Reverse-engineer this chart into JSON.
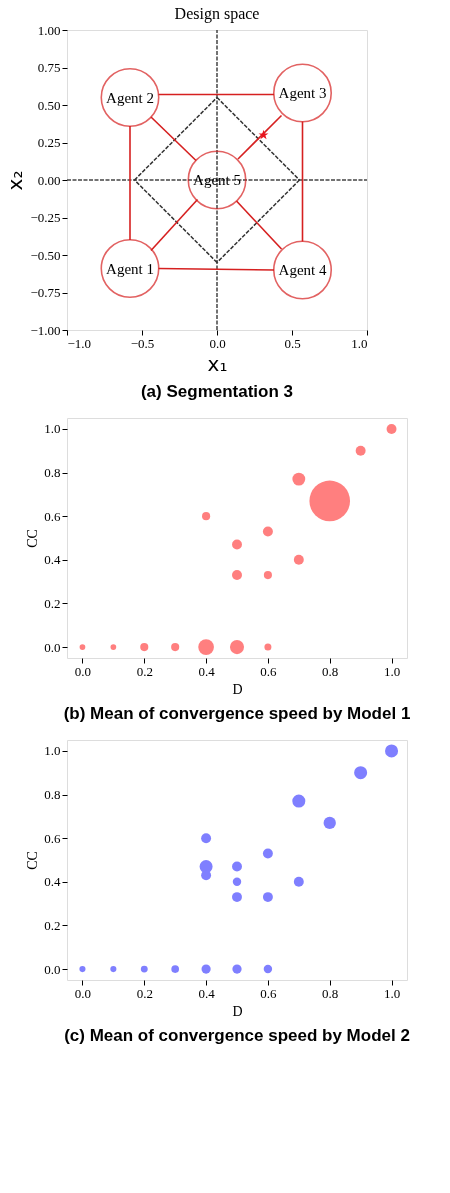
{
  "chart_data": [
    {
      "type": "scatter",
      "title": "Design space",
      "xlabel": "x₁",
      "ylabel": "x₂",
      "xlim": [
        -1,
        1
      ],
      "ylim": [
        -1,
        1
      ],
      "xticks": [
        {
          "value": -1,
          "label": "−1.0"
        },
        {
          "value": -0.5,
          "label": "−0.5"
        },
        {
          "value": 0,
          "label": "0.0"
        },
        {
          "value": 0.5,
          "label": "0.5"
        },
        {
          "value": 1,
          "label": "1.0"
        }
      ],
      "yticks": [
        {
          "value": -1,
          "label": "−1.00"
        },
        {
          "value": -0.75,
          "label": "−0.75"
        },
        {
          "value": -0.5,
          "label": "−0.50"
        },
        {
          "value": -0.25,
          "label": "−0.25"
        },
        {
          "value": 0,
          "label": "0.00"
        },
        {
          "value": 0.25,
          "label": "0.25"
        },
        {
          "value": 0.5,
          "label": "0.50"
        },
        {
          "value": 0.75,
          "label": "0.75"
        },
        {
          "value": 1,
          "label": "1.00"
        }
      ],
      "series": [
        {
          "type": "line",
          "color": "#444444",
          "line_style": "dashed",
          "x": [
            0,
            0
          ],
          "values": [
            -1,
            1
          ]
        },
        {
          "type": "line",
          "color": "#444444",
          "line_style": "dashed",
          "x": [
            -1,
            1
          ],
          "values": [
            0,
            0
          ]
        },
        {
          "type": "line",
          "color": "#333333",
          "line_style": "dashed",
          "x": [
            0,
            0.55
          ],
          "values": [
            0.55,
            0
          ]
        },
        {
          "type": "line",
          "color": "#333333",
          "line_style": "dashed",
          "x": [
            0.55,
            0
          ],
          "values": [
            0,
            -0.55
          ]
        },
        {
          "type": "line",
          "color": "#333333",
          "line_style": "dashed",
          "x": [
            0,
            -0.55
          ],
          "values": [
            -0.55,
            0
          ]
        },
        {
          "type": "line",
          "color": "#333333",
          "line_style": "dashed",
          "x": [
            -0.55,
            0
          ],
          "values": [
            0,
            0.55
          ]
        },
        {
          "type": "line",
          "color": "#d62020",
          "x": [
            -0.39,
            0.38
          ],
          "values": [
            0.57,
            0.57
          ]
        },
        {
          "type": "line",
          "color": "#d62020",
          "x": [
            0.57,
            0.57
          ],
          "values": [
            0.39,
            -0.41
          ]
        },
        {
          "type": "line",
          "color": "#d62020",
          "x": [
            -0.39,
            0.38
          ],
          "values": [
            -0.59,
            -0.6
          ]
        },
        {
          "type": "line",
          "color": "#d62020",
          "x": [
            -0.58,
            -0.58
          ],
          "values": [
            0.36,
            -0.4
          ]
        },
        {
          "type": "line",
          "color": "#d62020",
          "x": [
            -0.44,
            -0.14
          ],
          "values": [
            0.42,
            0.13
          ]
        },
        {
          "type": "line",
          "color": "#d62020",
          "x": [
            0.43,
            0.14
          ],
          "values": [
            0.43,
            0.14
          ]
        },
        {
          "type": "line",
          "color": "#d62020",
          "x": [
            -0.44,
            -0.13
          ],
          "values": [
            -0.47,
            -0.13
          ]
        },
        {
          "type": "line",
          "color": "#d62020",
          "x": [
            0.43,
            0.13
          ],
          "values": [
            -0.46,
            -0.14
          ]
        },
        {
          "type": "scatter",
          "marker": "circle",
          "color": "#d62020",
          "x": [
            -0.58,
            -0.58,
            0.57,
            0.57,
            0
          ],
          "values": [
            -0.59,
            0.55,
            0.58,
            -0.6,
            0
          ]
        },
        {
          "type": "scatter",
          "marker": "star",
          "color": "#e8141e",
          "x": [
            0.31
          ],
          "values": [
            0.3
          ]
        }
      ],
      "annotations": [
        {
          "text": "Agent 1",
          "x": -0.58,
          "y": -0.59
        },
        {
          "text": "Agent 2",
          "x": -0.58,
          "y": 0.55
        },
        {
          "text": "Agent 3",
          "x": 0.57,
          "y": 0.58
        },
        {
          "text": "Agent 4",
          "x": 0.57,
          "y": -0.6
        },
        {
          "text": "Agent 5",
          "x": 0,
          "y": 0
        },
        "(a) Segmentation 3"
      ]
    },
    {
      "type": "bubble",
      "xlabel": "D",
      "ylabel": "CC",
      "xlim": [
        -0.05,
        1.05
      ],
      "ylim": [
        -0.05,
        1.05
      ],
      "xticks": [
        {
          "value": 0,
          "label": "0.0"
        },
        {
          "value": 0.2,
          "label": "0.2"
        },
        {
          "value": 0.4,
          "label": "0.4"
        },
        {
          "value": 0.6,
          "label": "0.6"
        },
        {
          "value": 0.8,
          "label": "0.8"
        },
        {
          "value": 1,
          "label": "1.0"
        }
      ],
      "yticks": [
        {
          "value": 0,
          "label": "0.0"
        },
        {
          "value": 0.2,
          "label": "0.2"
        },
        {
          "value": 0.4,
          "label": "0.4"
        },
        {
          "value": 0.6,
          "label": "0.6"
        },
        {
          "value": 0.8,
          "label": "0.8"
        },
        {
          "value": 1,
          "label": "1.0"
        }
      ],
      "series": [
        {
          "color": "#ff7f7f",
          "x": [
            0,
            0.1,
            0.2,
            0.3,
            0.4,
            0.5,
            0.6,
            0.4,
            0.5,
            0.5,
            0.6,
            0.6,
            0.7,
            0.7,
            0.8,
            0.9,
            1.0
          ],
          "values": [
            0,
            0,
            0,
            0,
            0,
            0,
            0,
            0.6,
            0.47,
            0.33,
            0.53,
            0.33,
            0.4,
            0.77,
            0.67,
            0.9,
            1.0
          ],
          "sizes": [
            0.02,
            0.02,
            0.04,
            0.04,
            0.15,
            0.12,
            0.03,
            0.04,
            0.06,
            0.06,
            0.06,
            0.04,
            0.06,
            0.1,
            1,
            0.06,
            0.06
          ]
        }
      ],
      "annotations": [
        "(b) Mean of convergence speed by Model 1"
      ]
    },
    {
      "type": "bubble",
      "xlabel": "D",
      "ylabel": "CC",
      "xlim": [
        -0.05,
        1.05
      ],
      "ylim": [
        -0.05,
        1.05
      ],
      "xticks": [
        {
          "value": 0,
          "label": "0.0"
        },
        {
          "value": 0.2,
          "label": "0.2"
        },
        {
          "value": 0.4,
          "label": "0.4"
        },
        {
          "value": 0.6,
          "label": "0.6"
        },
        {
          "value": 0.8,
          "label": "0.8"
        },
        {
          "value": 1,
          "label": "1.0"
        }
      ],
      "yticks": [
        {
          "value": 0,
          "label": "0.0"
        },
        {
          "value": 0.2,
          "label": "0.2"
        },
        {
          "value": 0.4,
          "label": "0.4"
        },
        {
          "value": 0.6,
          "label": "0.6"
        },
        {
          "value": 0.8,
          "label": "0.8"
        },
        {
          "value": 1,
          "label": "1.0"
        }
      ],
      "series": [
        {
          "color": "#7f7fff",
          "x": [
            0,
            0.1,
            0.2,
            0.3,
            0.4,
            0.5,
            0.6,
            0.4,
            0.4,
            0.4,
            0.5,
            0.5,
            0.5,
            0.6,
            0.6,
            0.7,
            0.7,
            0.8,
            0.9,
            1.0
          ],
          "values": [
            0,
            0,
            0,
            0,
            0,
            0,
            0,
            0.6,
            0.47,
            0.43,
            0.47,
            0.4,
            0.33,
            0.53,
            0.33,
            0.4,
            0.77,
            0.67,
            0.9,
            1.0
          ],
          "sizes": [
            0.22,
            0.22,
            0.28,
            0.35,
            0.5,
            0.5,
            0.42,
            0.58,
            1,
            0.58,
            0.58,
            0.42,
            0.58,
            0.58,
            0.58,
            0.58,
            1,
            0.89,
            1,
            1
          ]
        }
      ],
      "annotations": [
        "(c) Mean of convergence speed by Model 2"
      ]
    }
  ]
}
